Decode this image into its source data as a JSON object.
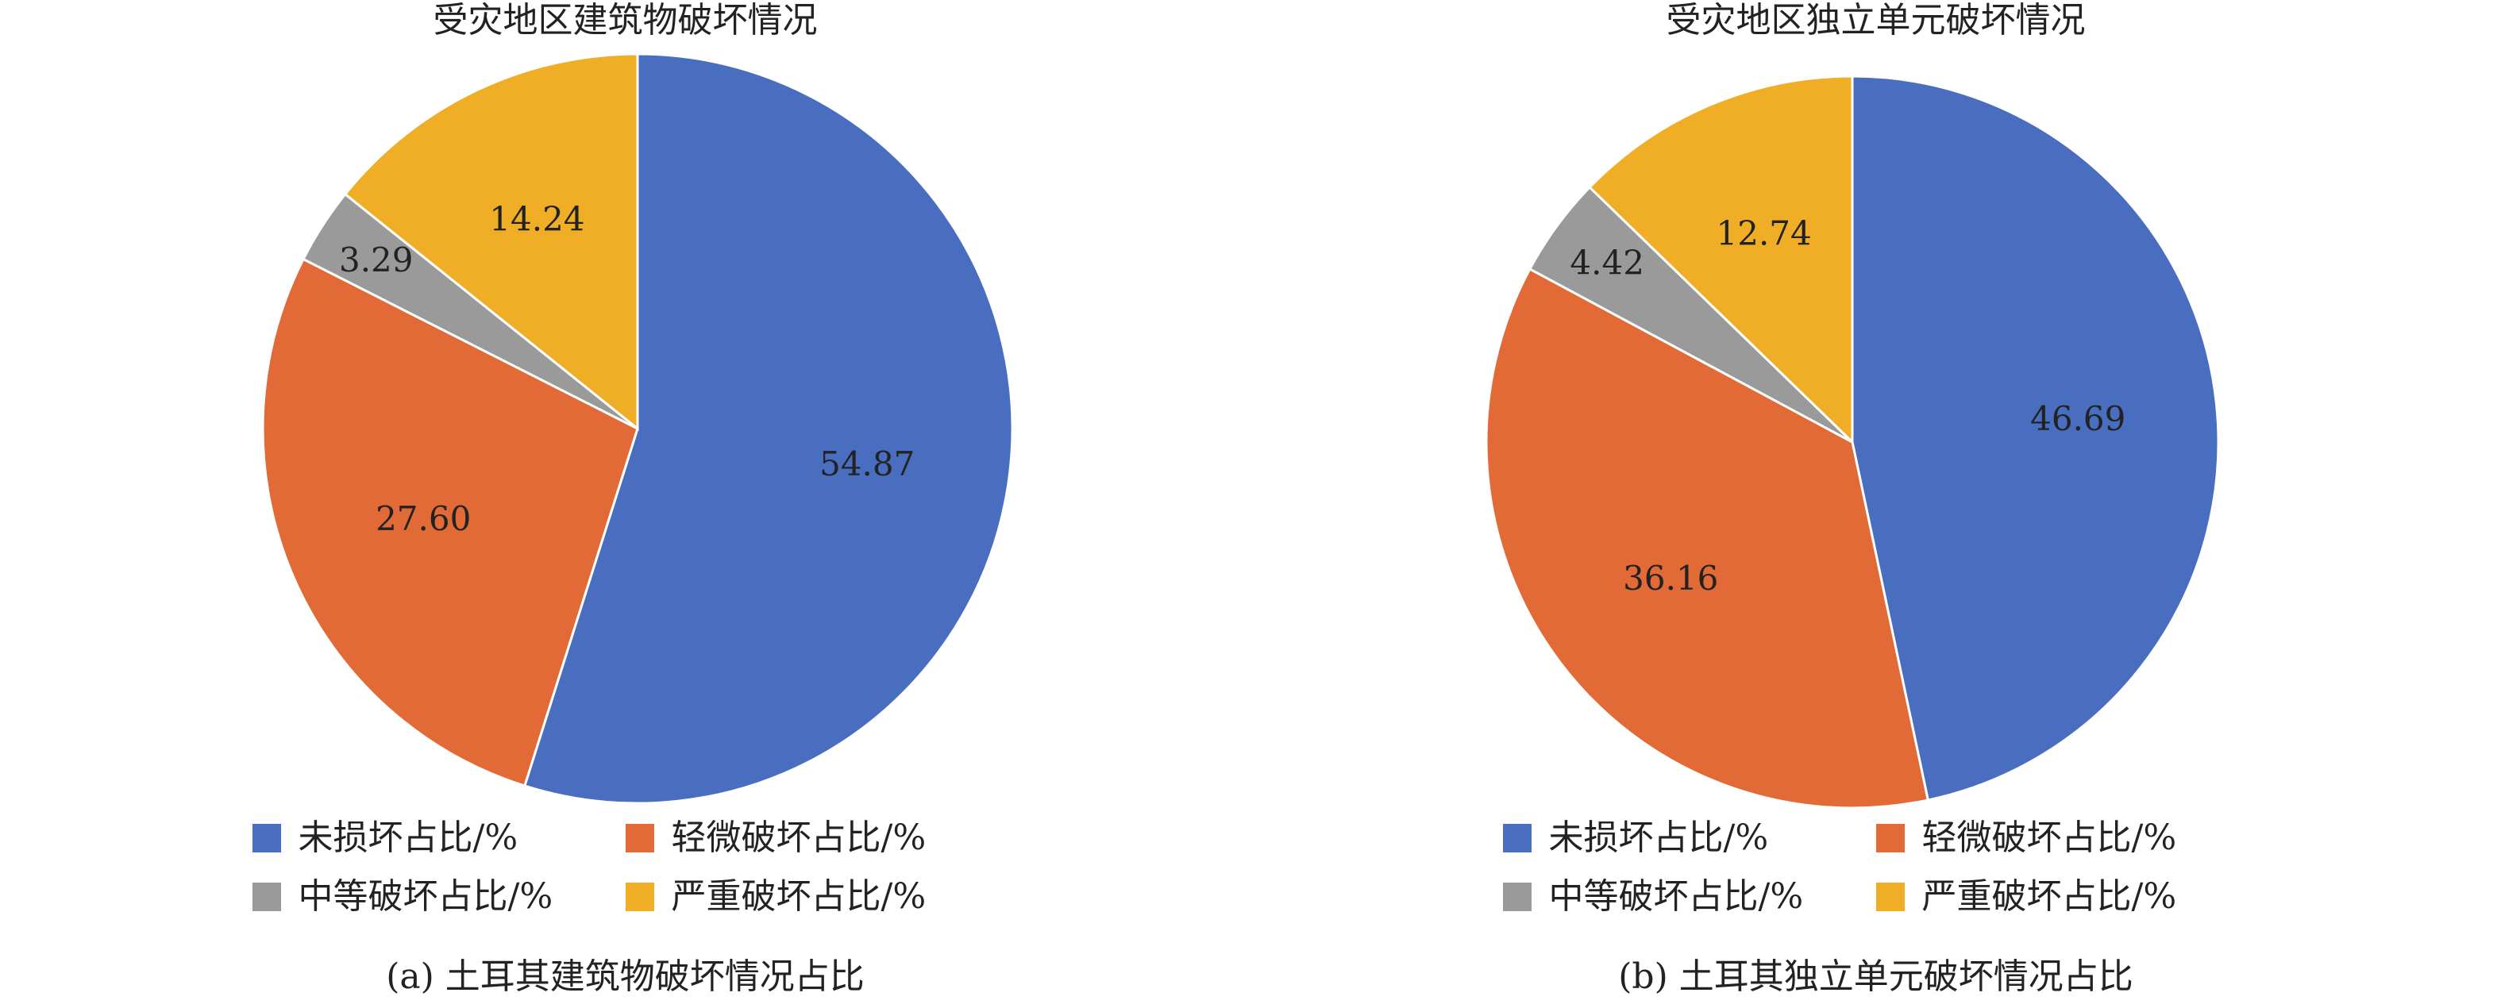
{
  "colors": {
    "intact": "#4A6EBF",
    "slight": "#E16A36",
    "moderate": "#9A9A9A",
    "severe": "#EFAE25"
  },
  "chart_data": [
    {
      "type": "pie",
      "title": "受灾地区建筑物破坏情况",
      "caption": "(a) 土耳其建筑物破坏情况占比",
      "slices": [
        {
          "key": "intact",
          "name": "未损坏占比/%",
          "value": 54.87,
          "label": "54.87"
        },
        {
          "key": "slight",
          "name": "轻微破坏占比/%",
          "value": 27.6,
          "label": "27.60"
        },
        {
          "key": "moderate",
          "name": "中等破坏占比/%",
          "value": 3.29,
          "label": "3.29"
        },
        {
          "key": "severe",
          "name": "严重破坏占比/%",
          "value": 14.24,
          "label": "14.24"
        }
      ],
      "legend_position": "bottom"
    },
    {
      "type": "pie",
      "title": "受灾地区独立单元破坏情况",
      "caption": "(b) 土耳其独立单元破坏情况占比",
      "slices": [
        {
          "key": "intact",
          "name": "未损坏占比/%",
          "value": 46.69,
          "label": "46.69"
        },
        {
          "key": "slight",
          "name": "轻微破坏占比/%",
          "value": 36.16,
          "label": "36.16"
        },
        {
          "key": "moderate",
          "name": "中等破坏占比/%",
          "value": 4.42,
          "label": "4.42"
        },
        {
          "key": "severe",
          "name": "严重破坏占比/%",
          "value": 12.74,
          "label": "12.74"
        }
      ],
      "legend_position": "bottom"
    }
  ]
}
